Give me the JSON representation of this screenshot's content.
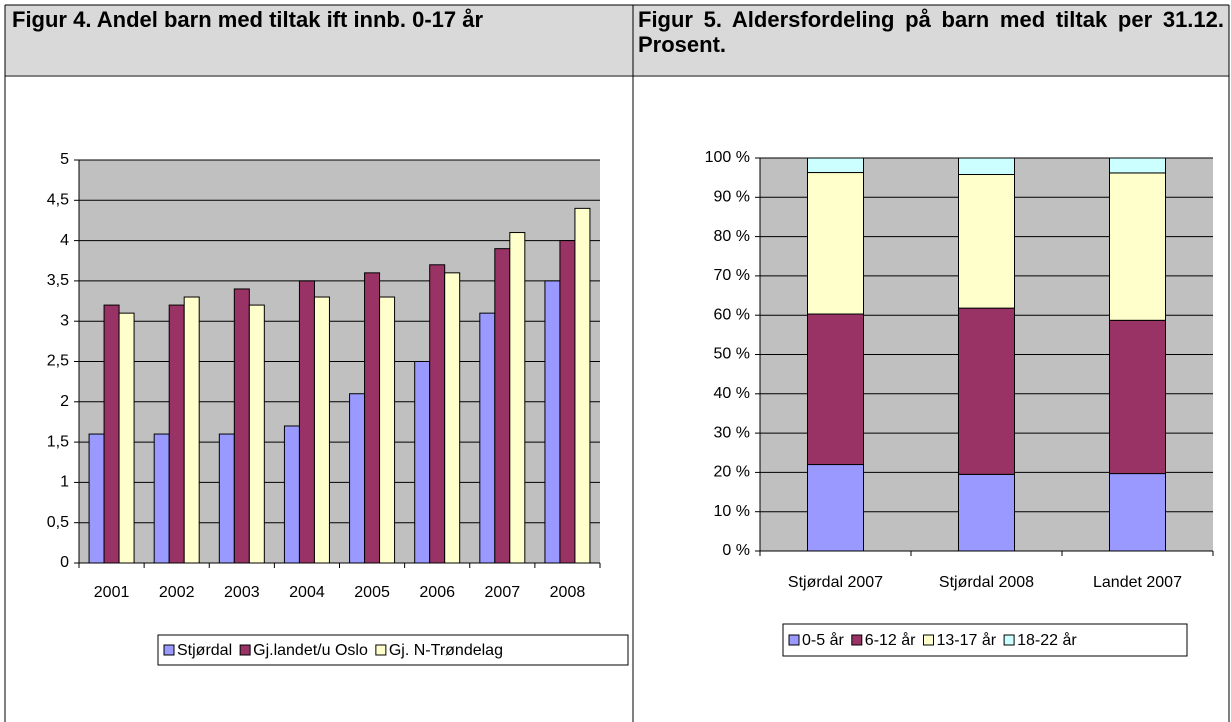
{
  "chart_data": [
    {
      "type": "bar",
      "title": "Figur 4. Andel barn med tiltak ift innb. 0-17 år",
      "categories": [
        "2001",
        "2002",
        "2003",
        "2004",
        "2005",
        "2006",
        "2007",
        "2008"
      ],
      "series": [
        {
          "name": "Stjørdal",
          "color": "#9999ff",
          "values": [
            1.6,
            1.6,
            1.6,
            1.7,
            2.1,
            2.5,
            3.1,
            3.5
          ]
        },
        {
          "name": "Gj.landet/u Oslo",
          "color": "#993366",
          "values": [
            3.2,
            3.2,
            3.4,
            3.5,
            3.6,
            3.7,
            3.9,
            4.0
          ]
        },
        {
          "name": "Gj. N-Trøndelag",
          "color": "#ffffcc",
          "values": [
            3.1,
            3.3,
            3.2,
            3.3,
            3.3,
            3.6,
            4.1,
            4.4
          ]
        }
      ],
      "ylim": [
        0,
        5
      ],
      "yticks": [
        0,
        {
          "value": 0.5,
          "label": "0,5"
        },
        1,
        {
          "value": 1.5,
          "label": "1,5"
        },
        2,
        {
          "value": 2.5,
          "label": "2,5"
        },
        3,
        {
          "value": 3.5,
          "label": "3,5"
        },
        4,
        {
          "value": 4.5,
          "label": "4,5"
        },
        5
      ],
      "grid": true,
      "legend": "bottom"
    },
    {
      "type": "stacked_bar",
      "title": "Figur 5. Aldersfordeling på barn med tiltak per 31.12. Prosent.",
      "categories": [
        "Stjørdal 2007",
        "Stjørdal 2008",
        "Landet 2007"
      ],
      "series": [
        {
          "name": "0-5 år",
          "color": "#9999ff",
          "values": [
            22,
            19.5,
            19.7
          ]
        },
        {
          "name": "6-12 år",
          "color": "#993366",
          "values": [
            38.3,
            42.3,
            39
          ]
        },
        {
          "name": "13-17 år",
          "color": "#ffffcc",
          "values": [
            36,
            34,
            37.5
          ]
        },
        {
          "name": "18-22 år",
          "color": "#ccffff",
          "values": [
            3.7,
            4.2,
            3.8
          ]
        }
      ],
      "ylim": [
        0,
        100
      ],
      "yticks": [
        {
          "value": 0,
          "label": "0 %"
        },
        {
          "value": 10,
          "label": "10 %"
        },
        {
          "value": 20,
          "label": "20 %"
        },
        {
          "value": 30,
          "label": "30 %"
        },
        {
          "value": 40,
          "label": "40 %"
        },
        {
          "value": 50,
          "label": "50 %"
        },
        {
          "value": 60,
          "label": "60 %"
        },
        {
          "value": 70,
          "label": "70 %"
        },
        {
          "value": 80,
          "label": "80 %"
        },
        {
          "value": 90,
          "label": "90 %"
        },
        {
          "value": 100,
          "label": "100 %"
        }
      ],
      "grid": true,
      "legend": "bottom"
    }
  ]
}
